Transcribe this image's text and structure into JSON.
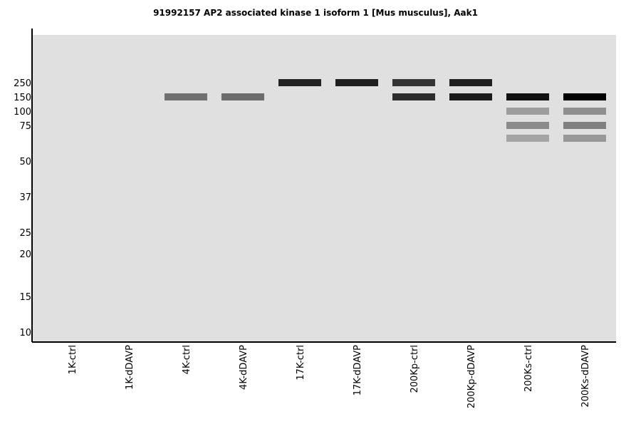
{
  "chart_data": {
    "type": "blot",
    "title": "91992157 AP2 associated kinase 1 isoform 1 [Mus musculus], Aak1",
    "y_ticks": [
      "250",
      "150",
      "100",
      "75",
      "50",
      "37",
      "25",
      "20",
      "15",
      "10"
    ],
    "lanes": [
      "1K-ctrl",
      "1K-dDAVP",
      "4K-ctrl",
      "4K-dDAVP",
      "17K-ctrl",
      "17K-dDAVP",
      "200Kp-ctrl",
      "200Kp-dDAVP",
      "200Ks-ctrl",
      "200Ks-dDAVP"
    ],
    "bands": [
      {
        "lane": 2,
        "marker": "150",
        "intensity": 0.5
      },
      {
        "lane": 3,
        "marker": "150",
        "intensity": 0.52
      },
      {
        "lane": 4,
        "marker": "250",
        "intensity": 0.85
      },
      {
        "lane": 5,
        "marker": "250",
        "intensity": 0.86
      },
      {
        "lane": 6,
        "marker": "250",
        "intensity": 0.77
      },
      {
        "lane": 6,
        "marker": "150",
        "intensity": 0.8
      },
      {
        "lane": 7,
        "marker": "250",
        "intensity": 0.86
      },
      {
        "lane": 7,
        "marker": "150",
        "intensity": 0.88
      },
      {
        "lane": 8,
        "marker": "150",
        "intensity": 0.92
      },
      {
        "lane": 8,
        "marker": "100",
        "intensity": 0.3
      },
      {
        "lane": 8,
        "marker": "75",
        "intensity": 0.38
      },
      {
        "lane": 8,
        "marker": "65",
        "intensity": 0.27
      },
      {
        "lane": 9,
        "marker": "150",
        "intensity": 1.0
      },
      {
        "lane": 9,
        "marker": "100",
        "intensity": 0.36
      },
      {
        "lane": 9,
        "marker": "75",
        "intensity": 0.43
      },
      {
        "lane": 9,
        "marker": "65",
        "intensity": 0.32
      }
    ],
    "colors": {
      "background": "#e0e0e0",
      "axis": "#000000"
    }
  }
}
